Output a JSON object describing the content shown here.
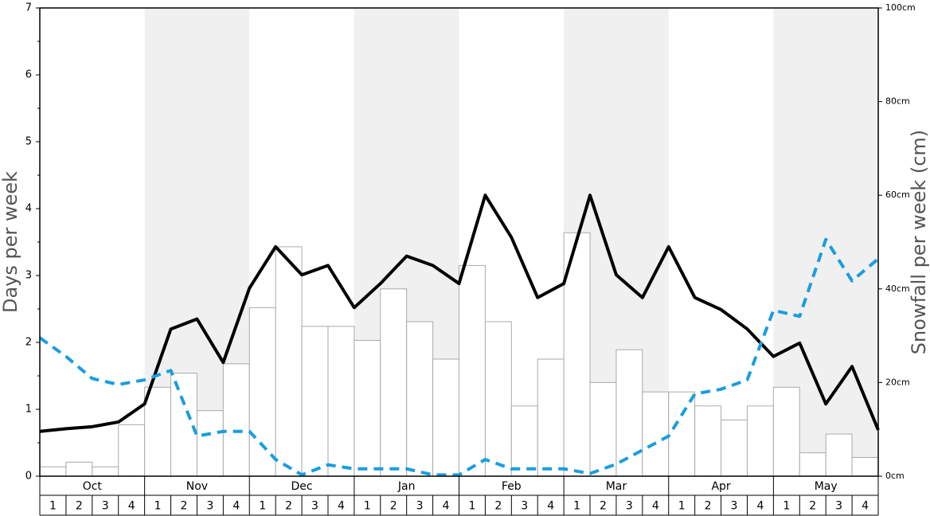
{
  "chart_data": {
    "type": "bar-line",
    "y_label": "Days per week",
    "y2_label": "Snowfall per week (cm)",
    "months": [
      "Oct",
      "Nov",
      "Dec",
      "Jan",
      "Feb",
      "Mar",
      "Apr",
      "May"
    ],
    "categories": [
      "1",
      "2",
      "3",
      "4",
      "1",
      "2",
      "3",
      "4",
      "1",
      "2",
      "3",
      "4",
      "1",
      "2",
      "3",
      "4",
      "1",
      "2",
      "3",
      "4",
      "1",
      "2",
      "3",
      "4",
      "1",
      "2",
      "3",
      "4",
      "1",
      "2",
      "3",
      "4"
    ],
    "x": [
      0,
      1,
      2,
      3,
      4,
      5,
      6,
      7,
      8,
      9,
      10,
      11,
      12,
      13,
      14,
      15,
      16,
      17,
      18,
      19,
      20,
      21,
      22,
      23,
      24,
      25,
      26,
      27,
      28,
      29,
      30,
      31,
      32
    ],
    "xlim": [
      0,
      32
    ],
    "ylim": [
      0,
      7
    ],
    "yticks": [
      0,
      1,
      2,
      3,
      4,
      5,
      6,
      7
    ],
    "yminorticks": [
      0.5,
      1.5,
      2.5,
      3.5,
      4.5,
      5.5,
      6.5
    ],
    "y2lim": [
      0,
      100
    ],
    "y2ticks": [
      {
        "value": 0,
        "label": "0cm"
      },
      {
        "value": 20,
        "label": "20cm"
      },
      {
        "value": 40,
        "label": "40cm"
      },
      {
        "value": 60,
        "label": "60cm"
      },
      {
        "value": 80,
        "label": "80cm"
      },
      {
        "value": 100,
        "label": "100cm"
      }
    ],
    "series": [
      {
        "kind": "bar",
        "axis": "y2",
        "color": "#ffffff",
        "values": [
          2,
          3,
          2,
          11,
          19,
          22,
          14,
          24,
          36,
          49,
          32,
          32,
          29,
          40,
          33,
          25,
          45,
          33,
          15,
          25,
          52,
          20,
          27,
          18,
          18,
          15,
          12,
          15,
          19,
          5,
          9,
          4
        ]
      },
      {
        "kind": "line",
        "color": "#000000",
        "values": [
          0.67,
          0.71,
          0.74,
          0.81,
          1.08,
          2.2,
          2.35,
          1.7,
          2.81,
          3.43,
          3.01,
          3.15,
          2.52,
          2.88,
          3.29,
          3.15,
          2.88,
          4.2,
          3.57,
          2.67,
          2.88,
          4.2,
          3.01,
          2.67,
          3.43,
          2.67,
          2.49,
          2.2,
          1.79,
          1.99,
          1.08,
          1.64,
          0.69
        ]
      },
      {
        "kind": "dashed-line",
        "color": "#1a9de0",
        "values": [
          2.07,
          1.79,
          1.46,
          1.37,
          1.44,
          1.58,
          0.6,
          0.67,
          0.67,
          0.25,
          0.02,
          0.17,
          0.11,
          0.11,
          0.11,
          0.02,
          0.02,
          0.25,
          0.11,
          0.11,
          0.11,
          0.04,
          0.18,
          0.39,
          0.6,
          1.23,
          1.3,
          1.44,
          2.48,
          2.39,
          3.54,
          2.92,
          3.25
        ]
      }
    ]
  }
}
